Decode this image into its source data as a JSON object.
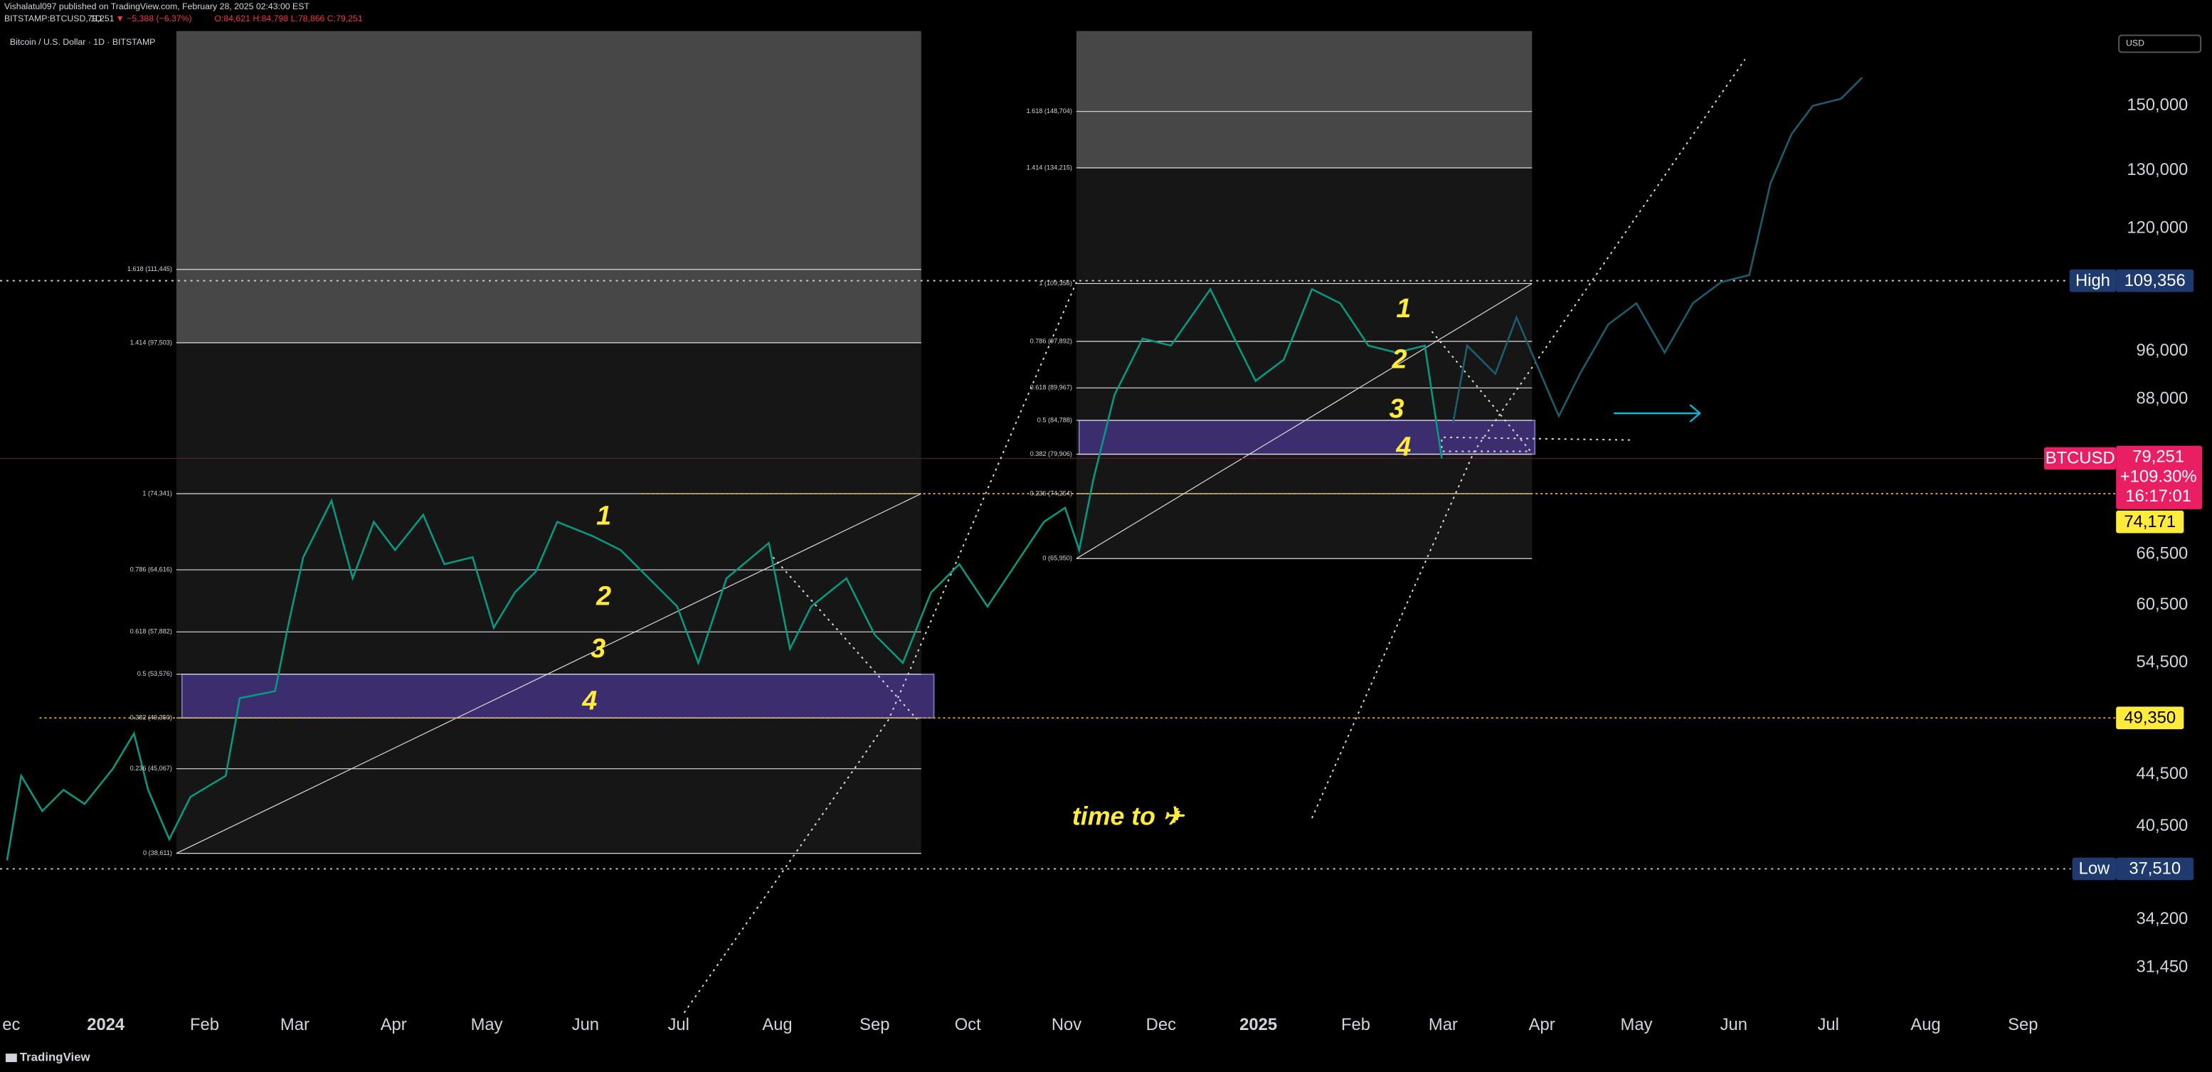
{
  "header": {
    "publisher": "Vishalatul097 published on TradingView.com, February 28, 2025 02:43:00 EST",
    "symbol": "BITSTAMP:BTCUSD, 1D",
    "last": "79,251",
    "change": "▼ −5,388 (−6.37%)",
    "ohlc": "O:84,621 H:84,798 L:78,866 C:79,251"
  },
  "chart_title": "Bitcoin / U.S. Dollar · 1D · BITSTAMP",
  "currency": "USD",
  "price_axis": [
    "150,000",
    "130,000",
    "120,000",
    "96,000",
    "88,000",
    "66,500",
    "60,500",
    "54,500",
    "44,500",
    "40,500",
    "34,200",
    "31,450"
  ],
  "time_axis": [
    "ec",
    "2024",
    "Feb",
    "Mar",
    "Apr",
    "May",
    "Jun",
    "Jul",
    "Aug",
    "Sep",
    "Oct",
    "Nov",
    "Dec",
    "2025",
    "Feb",
    "Mar",
    "Apr",
    "May",
    "Jun",
    "Jul",
    "Aug",
    "Sep"
  ],
  "badges": {
    "high_label": "High",
    "high_value": "109,356",
    "symbol": "BTCUSD",
    "price": "79,251",
    "change": "+109.30%",
    "countdown": "16:17:01",
    "level_1": "74,171",
    "level_2": "49,350",
    "low_label": "Low",
    "low_value": "37,510"
  },
  "fib_left": [
    "1.618 (111,445)",
    "1.414 (97,503)",
    "1 (74,341)",
    "0.786 (64,616)",
    "0.618 (57,882)",
    "0.5 (53,576)",
    "0.382 (49,350)",
    "0.236 (45,067)",
    "0 (38,611)"
  ],
  "fib_right": [
    "1.618 (148,704)",
    "1.414 (134,215)",
    "1 (109,356)",
    "0.786 (97,892)",
    "0.618 (89,967)",
    "0.5 (84,788)",
    "0.382 (79,906)",
    "0.236 (74,254)",
    "0 (65,950)"
  ],
  "wave_left": [
    "1",
    "2",
    "3",
    "4"
  ],
  "wave_right": [
    "1",
    "2",
    "3",
    "4"
  ],
  "annotation": "time to ✈",
  "footer": "TradingView"
}
